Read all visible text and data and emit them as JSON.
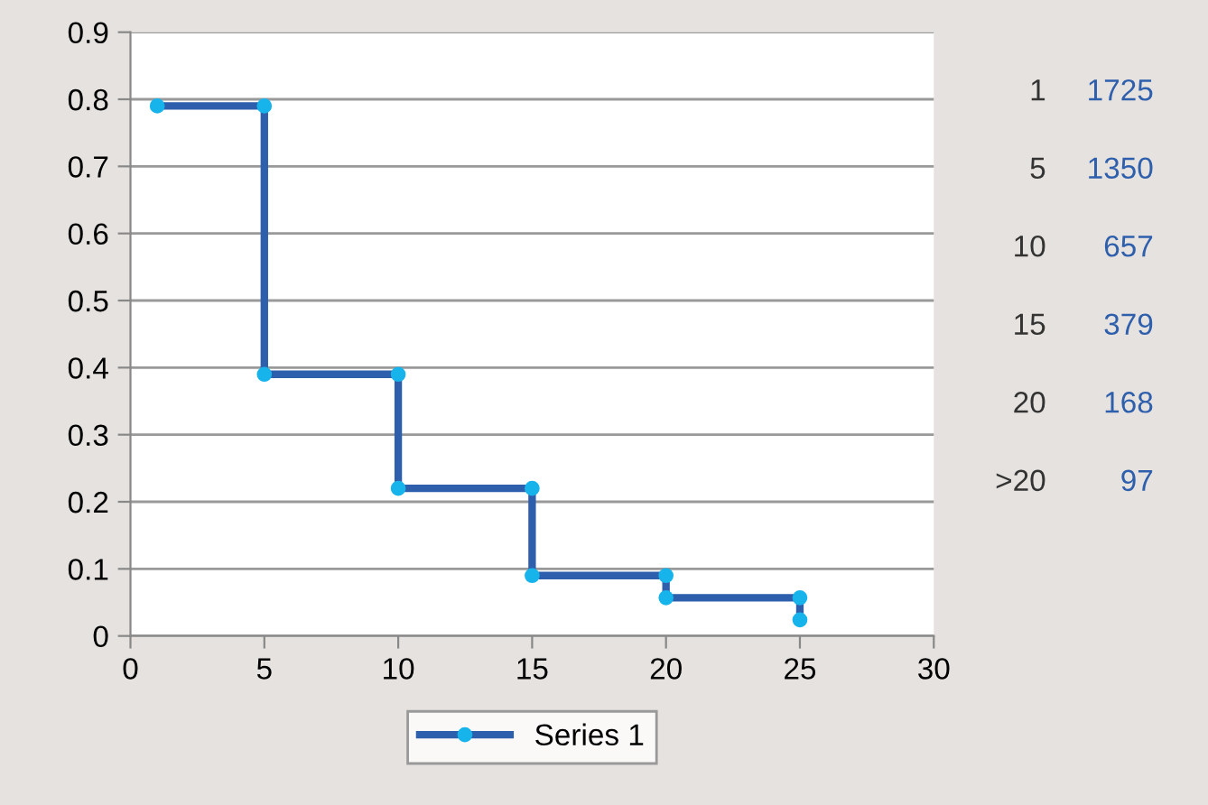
{
  "chart_data": {
    "type": "line",
    "x": [
      1,
      5,
      5,
      10,
      10,
      15,
      15,
      20,
      20,
      25,
      25
    ],
    "series": [
      {
        "name": "Series 1",
        "color": "#2e5fac",
        "values": [
          0.79,
          0.79,
          0.39,
          0.39,
          0.22,
          0.22,
          0.09,
          0.09,
          0.057,
          0.057,
          0.024
        ]
      }
    ],
    "xlim": [
      0,
      30
    ],
    "xticks": [
      0,
      5,
      10,
      15,
      20,
      25,
      30
    ],
    "ylim": [
      0,
      0.9
    ],
    "yticks": [
      0,
      0.1,
      0.2,
      0.3,
      0.4,
      0.5,
      0.6,
      0.7,
      0.8,
      0.9
    ],
    "grid": "y",
    "legend": "bottom",
    "marker": "circle",
    "line_style": "solid",
    "annotations": [
      "1",
      "1725",
      "5",
      "1350",
      "10",
      "657",
      "15",
      "379",
      "20",
      "168",
      ">20",
      "97"
    ]
  }
}
